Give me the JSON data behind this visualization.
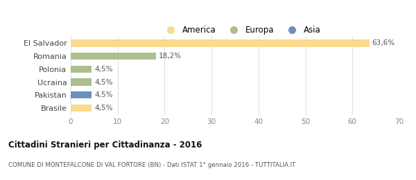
{
  "categories": [
    "El Salvador",
    "Romania",
    "Polonia",
    "Ucraina",
    "Pakistan",
    "Brasile"
  ],
  "values": [
    63.6,
    18.2,
    4.5,
    4.5,
    4.5,
    4.5
  ],
  "bar_colors": [
    "#FADA8E",
    "#ADBF8A",
    "#ADBF8A",
    "#ADBF8A",
    "#6B8FC0",
    "#FADA8E"
  ],
  "labels": [
    "63,6%",
    "18,2%",
    "4,5%",
    "4,5%",
    "4,5%",
    "4,5%"
  ],
  "xlim": [
    0,
    70
  ],
  "xticks": [
    0,
    10,
    20,
    30,
    40,
    50,
    60,
    70
  ],
  "title": "Cittadini Stranieri per Cittadinanza - 2016",
  "subtitle": "COMUNE DI MONTEFALCONE DI VAL FORTORE (BN) - Dati ISTAT 1° gennaio 2016 - TUTTITALIA.IT",
  "legend": [
    {
      "label": "America",
      "color": "#FADA8E"
    },
    {
      "label": "Europa",
      "color": "#ADBF8A"
    },
    {
      "label": "Asia",
      "color": "#6B8FC0"
    }
  ],
  "background_color": "#ffffff",
  "grid_color": "#e0e0e0"
}
